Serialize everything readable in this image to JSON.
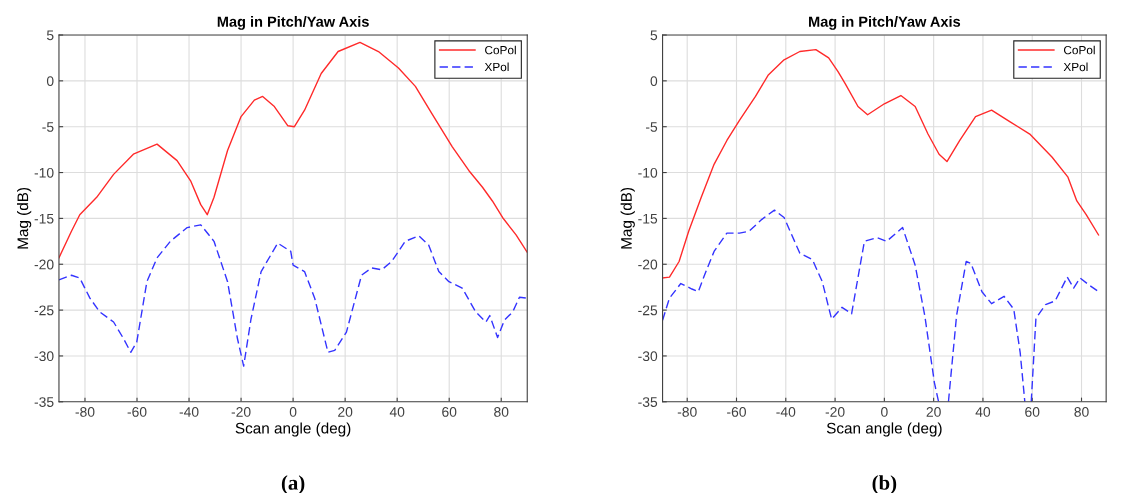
{
  "chart_data": [
    {
      "type": "line",
      "title": "Mag in Pitch/Yaw Axis",
      "xlabel": "Scan angle (deg)",
      "ylabel": "Mag (dB)",
      "xlim": [
        -90,
        90
      ],
      "ylim": [
        -35,
        5
      ],
      "xticks": [
        -80,
        -60,
        -40,
        -20,
        0,
        20,
        40,
        60,
        80
      ],
      "yticks": [
        -35,
        -30,
        -25,
        -20,
        -15,
        -10,
        -5,
        0,
        5
      ],
      "grid": true,
      "legend": "top right",
      "annotations": [
        "(a)"
      ],
      "series": [
        {
          "name": "CoPol",
          "color": "#ff2a2a",
          "line_style": "solid",
          "x": [
            -90,
            -85.2,
            -82,
            -75.5,
            -69,
            -61.4,
            -52.3,
            -44.6,
            -39.4,
            -35.5,
            -33,
            -30.4,
            -25.2,
            -20,
            -14.9,
            -11.7,
            -7.2,
            -2,
            0.5,
            4.4,
            10.8,
            17.3,
            25.7,
            32.8,
            40.5,
            47,
            53.4,
            61.2,
            67.6,
            72.8,
            76.6,
            80.5,
            85.7,
            90
          ],
          "values": [
            -19.3,
            -16.4,
            -14.6,
            -12.7,
            -10.2,
            -8.0,
            -6.9,
            -8.7,
            -10.9,
            -13.5,
            -14.6,
            -12.7,
            -7.6,
            -3.9,
            -2.1,
            -1.7,
            -2.8,
            -4.9,
            -5.0,
            -3.2,
            0.8,
            3.2,
            4.2,
            3.2,
            1.4,
            -0.6,
            -3.6,
            -7.2,
            -9.8,
            -11.6,
            -13.1,
            -14.9,
            -16.8,
            -18.7
          ]
        },
        {
          "name": "XPol",
          "color": "#3333ff",
          "line_style": "dashed",
          "x": [
            -90,
            -85.2,
            -82,
            -78.1,
            -74.3,
            -69,
            -65.2,
            -62.4,
            -60.1,
            -56.2,
            -52.3,
            -47.2,
            -40.7,
            -35.5,
            -30.4,
            -25.2,
            -21.4,
            -19,
            -16.2,
            -12.3,
            -5.9,
            -0.9,
            0,
            4.4,
            8.3,
            13.4,
            16,
            20.5,
            26.3,
            30.2,
            34.1,
            37.9,
            43.1,
            48.3,
            52.1,
            56,
            59.9,
            65,
            70.2,
            74.1,
            75.6,
            78.6,
            81.2,
            84.4,
            87,
            90
          ],
          "values": [
            -21.7,
            -21.2,
            -21.5,
            -23.7,
            -25.2,
            -26.3,
            -28.1,
            -29.6,
            -28.5,
            -21.9,
            -19.3,
            -17.5,
            -16.0,
            -15.7,
            -17.5,
            -21.9,
            -28.1,
            -31.1,
            -26.0,
            -20.8,
            -17.7,
            -18.6,
            -20.1,
            -20.8,
            -23.7,
            -29.6,
            -29.4,
            -27.4,
            -21.2,
            -20.4,
            -20.6,
            -19.7,
            -17.5,
            -16.9,
            -17.9,
            -20.8,
            -21.9,
            -22.6,
            -25.2,
            -26.3,
            -25.6,
            -28.0,
            -26.1,
            -25.2,
            -23.6,
            -23.7
          ]
        }
      ]
    },
    {
      "type": "line",
      "title": "Mag in Pitch/Yaw Axis",
      "xlabel": "Scan angle (deg)",
      "ylabel": "Mag (dB)",
      "xlim": [
        -90,
        90
      ],
      "ylim": [
        -35,
        5
      ],
      "xticks": [
        -80,
        -60,
        -40,
        -20,
        0,
        20,
        40,
        60,
        80
      ],
      "yticks": [
        -35,
        -30,
        -25,
        -20,
        -15,
        -10,
        -5,
        0,
        5
      ],
      "grid": true,
      "legend": "top right",
      "annotations": [
        "(b)"
      ],
      "series": [
        {
          "name": "CoPol",
          "color": "#ff2a2a",
          "line_style": "solid",
          "x": [
            -90,
            -87.2,
            -83.3,
            -79.4,
            -74.3,
            -69.1,
            -63.9,
            -58.8,
            -52.3,
            -47.2,
            -40.7,
            -34.3,
            -27.8,
            -22.6,
            -18.8,
            -15.9,
            -10.7,
            -6.8,
            0,
            6.7,
            12.5,
            17.7,
            22.2,
            25.4,
            30.6,
            37,
            43.5,
            51.2,
            59,
            68,
            74.5,
            78.1,
            81.9,
            86.9
          ],
          "values": [
            -21.5,
            -21.4,
            -19.7,
            -16.4,
            -12.7,
            -9.1,
            -6.5,
            -4.3,
            -1.7,
            0.6,
            2.3,
            3.2,
            3.4,
            2.5,
            1.0,
            -0.3,
            -2.8,
            -3.7,
            -2.5,
            -1.6,
            -2.8,
            -5.8,
            -8.0,
            -8.8,
            -6.5,
            -3.9,
            -3.2,
            -4.5,
            -5.8,
            -8.3,
            -10.5,
            -13.1,
            -14.6,
            -16.8
          ]
        },
        {
          "name": "XPol",
          "color": "#3333ff",
          "line_style": "dashed",
          "x": [
            -90,
            -87.2,
            -82.6,
            -78.1,
            -75.5,
            -73,
            -69.1,
            -63.9,
            -58.8,
            -54.9,
            -49.7,
            -44.6,
            -40.7,
            -34.3,
            -29.2,
            -25.2,
            -21.4,
            -17.2,
            -13.3,
            -8.1,
            -3,
            0.9,
            7.4,
            12.5,
            16.4,
            20.3,
            22.0,
            24.0,
            26.0,
            29.3,
            33.2,
            35.1,
            39.6,
            43.5,
            48.6,
            52.5,
            55.1,
            57.0,
            58.3,
            59.6,
            61.5,
            65.4,
            69.3,
            74.2,
            76.8,
            79.4,
            83.2,
            87
          ],
          "values": [
            -26.1,
            -23.7,
            -22.1,
            -22.7,
            -23.0,
            -21.2,
            -18.6,
            -16.6,
            -16.6,
            -16.4,
            -15.1,
            -14.1,
            -14.9,
            -18.8,
            -19.5,
            -21.9,
            -26.0,
            -24.7,
            -25.4,
            -17.5,
            -17.1,
            -17.5,
            -16.0,
            -20.1,
            -25.6,
            -32.9,
            -35,
            null,
            -35,
            -25.6,
            -19.7,
            -19.9,
            -23.0,
            -24.3,
            -23.5,
            -24.9,
            -29.6,
            -35,
            null,
            -35,
            -25.9,
            -24.4,
            -24.0,
            -21.4,
            -22.6,
            -21.5,
            -22.3,
            -23.0
          ]
        }
      ]
    }
  ]
}
